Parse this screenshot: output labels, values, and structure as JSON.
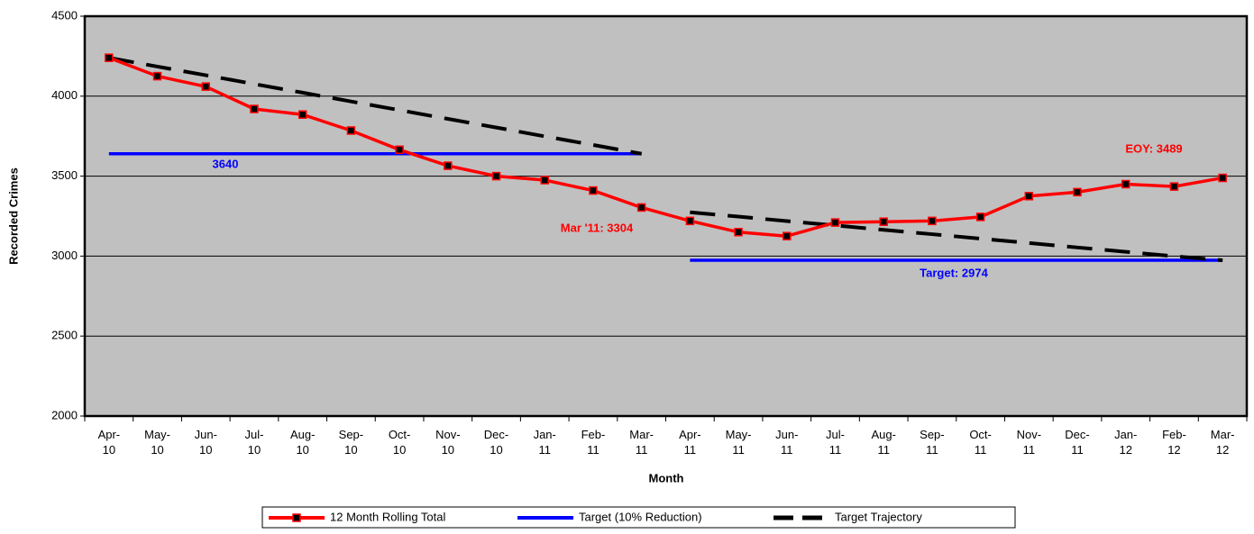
{
  "chart_data": {
    "type": "line",
    "xlabel": "Month",
    "ylabel": "Recorded Crimes",
    "categories": [
      "Apr-10",
      "May-10",
      "Jun-10",
      "Jul-10",
      "Aug-10",
      "Sep-10",
      "Oct-10",
      "Nov-10",
      "Dec-10",
      "Jan-11",
      "Feb-11",
      "Mar-11",
      "Apr-11",
      "May-11",
      "Jun-11",
      "Jul-11",
      "Aug-11",
      "Sep-11",
      "Oct-11",
      "Nov-11",
      "Dec-11",
      "Jan-12",
      "Feb-12",
      "Mar-12"
    ],
    "series": [
      {
        "name": "12 Month Rolling Total",
        "color": "#ff0000",
        "marker": true,
        "pieces": 1,
        "values": [
          4240,
          4125,
          4060,
          3920,
          3885,
          3785,
          3665,
          3565,
          3500,
          3475,
          3410,
          3304,
          3220,
          3150,
          3125,
          3210,
          3215,
          3220,
          3245,
          3375,
          3400,
          3450,
          3435,
          3489
        ]
      },
      {
        "name": "Target (10% Reduction)",
        "color": "#0000ff",
        "marker": false,
        "pieces": 2,
        "values": [
          3640,
          3640,
          3640,
          3640,
          3640,
          3640,
          3640,
          3640,
          3640,
          3640,
          3640,
          3640,
          2974,
          2974,
          2974,
          2974,
          2974,
          2974,
          2974,
          2974,
          2974,
          2974,
          2974,
          2974
        ]
      },
      {
        "name": "Target Trajectory",
        "color": "#000000",
        "marker": false,
        "dashed": true,
        "pieces": 2,
        "values": [
          4240,
          4185,
          4131,
          4076,
          4022,
          3967,
          3913,
          3858,
          3804,
          3749,
          3695,
          3640,
          3274,
          3247,
          3219,
          3192,
          3164,
          3137,
          3109,
          3082,
          3054,
          3027,
          2999,
          2974
        ]
      }
    ],
    "annotations": [
      "3640",
      "Mar '11: 3304",
      "Target: 2974",
      "EOY: 3489"
    ],
    "ylim": [
      2000,
      4500
    ],
    "yticks": [
      2000,
      2500,
      3000,
      3500,
      4000,
      4500
    ],
    "grid": true,
    "legend": "bottom"
  }
}
